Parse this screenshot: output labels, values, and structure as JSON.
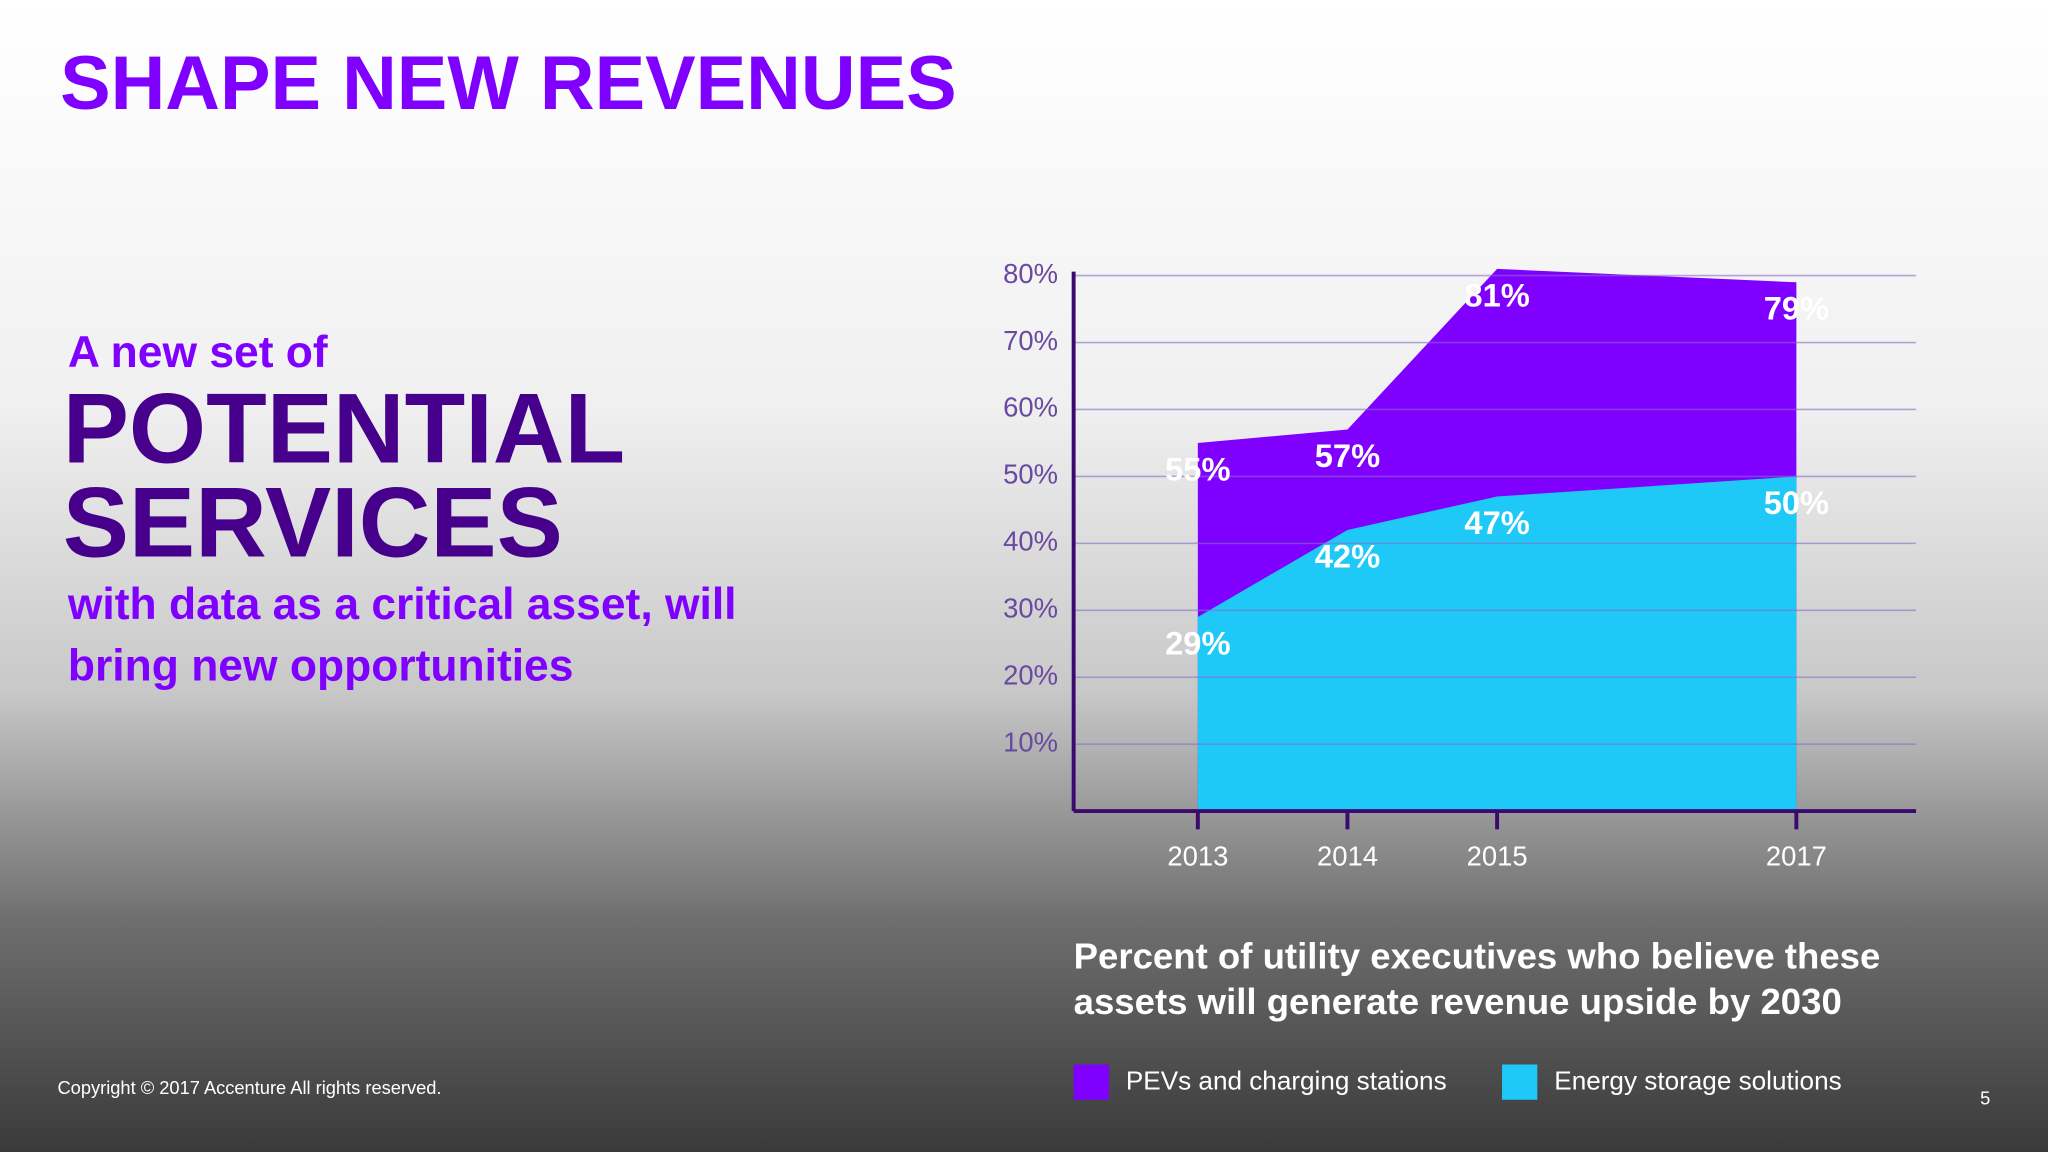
{
  "title": "SHAPE NEW REVENUES",
  "headline": {
    "intro": "A new set of",
    "lines": [
      "POTENTIAL",
      "SERVICES"
    ],
    "body": [
      "with data as a critical asset, will",
      "bring new opportunities"
    ]
  },
  "chart_data": {
    "type": "area",
    "x": [
      2013,
      2014,
      2015,
      2017
    ],
    "xlim": [
      2012.17,
      2017.8
    ],
    "xticks": [
      2013,
      2014,
      2015,
      2017
    ],
    "ylim": [
      0,
      80
    ],
    "yticks": [
      {
        "value": 10,
        "label": "10%"
      },
      {
        "value": 20,
        "label": "20%"
      },
      {
        "value": 30,
        "label": "30%"
      },
      {
        "value": 40,
        "label": "40%"
      },
      {
        "value": 50,
        "label": "50%"
      },
      {
        "value": 60,
        "label": "60%"
      },
      {
        "value": 70,
        "label": "70%"
      },
      {
        "value": 80,
        "label": "80%"
      }
    ],
    "grid": true,
    "caption": [
      "Percent of utility executives who believe these",
      "assets will generate revenue upside by 2030"
    ],
    "series": [
      {
        "name": "PEVs and charging stations",
        "color": "#7f00ff",
        "values": [
          55,
          57,
          81,
          79
        ],
        "value_labels": [
          "55%",
          "57%",
          "81%",
          "79%"
        ]
      },
      {
        "name": "Energy storage solutions",
        "color": "#1ec9f7",
        "values": [
          29,
          42,
          47,
          50
        ],
        "value_labels": [
          "29%",
          "42%",
          "47%",
          "50%"
        ]
      }
    ]
  },
  "footer": {
    "copyright": "Copyright © 2017 Accenture  All rights reserved.",
    "page": 5
  }
}
